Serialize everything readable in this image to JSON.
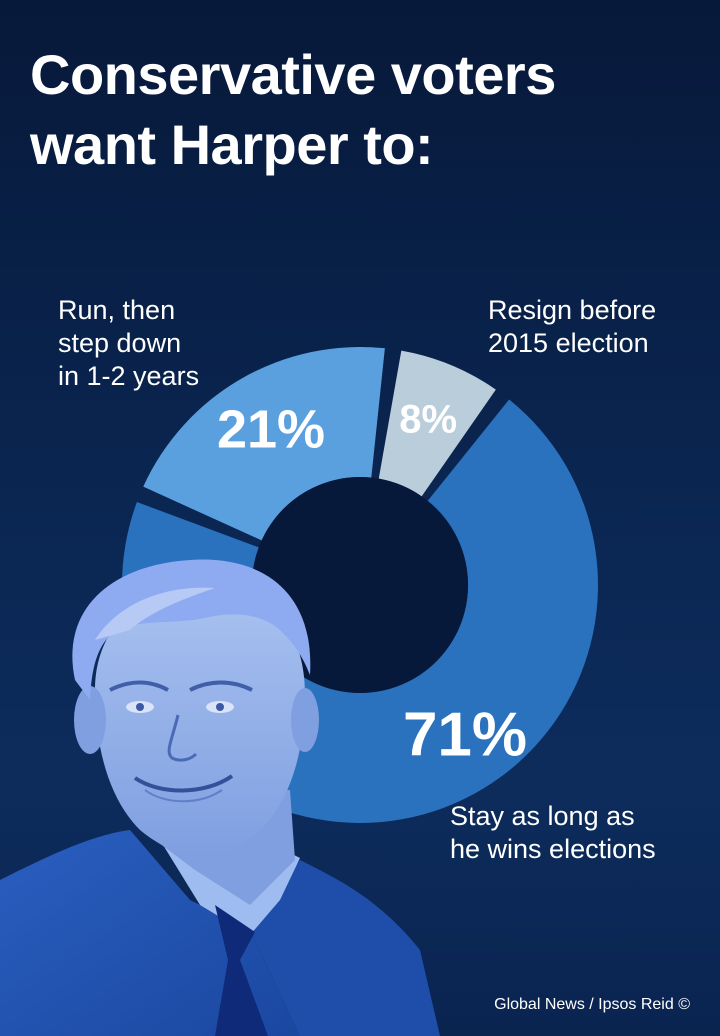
{
  "title_lines": [
    "Conservative voters",
    "want Harper to:"
  ],
  "source": "Global News / Ipsos Reid ©",
  "colors": {
    "background": "#0a2450",
    "hole": "#07193a",
    "stay": "#2a71be",
    "run": "#5aa0df",
    "resign": "#b9cddb",
    "portrait": "#8db0ea"
  },
  "chart_data": {
    "type": "pie",
    "donut": true,
    "title": "Conservative voters want Harper to:",
    "slices": [
      {
        "name_lines": [
          "Resign before",
          "2015 election"
        ],
        "value": 8,
        "label": "8%",
        "color": "#b9cddb"
      },
      {
        "name_lines": [
          "Stay as long as",
          "he wins elections"
        ],
        "value": 71,
        "label": "71%",
        "color": "#2a71be"
      },
      {
        "name_lines": [
          "Run, then",
          "step down",
          "in 1-2 years"
        ],
        "value": 21,
        "label": "21%",
        "color": "#5aa0df"
      }
    ]
  }
}
